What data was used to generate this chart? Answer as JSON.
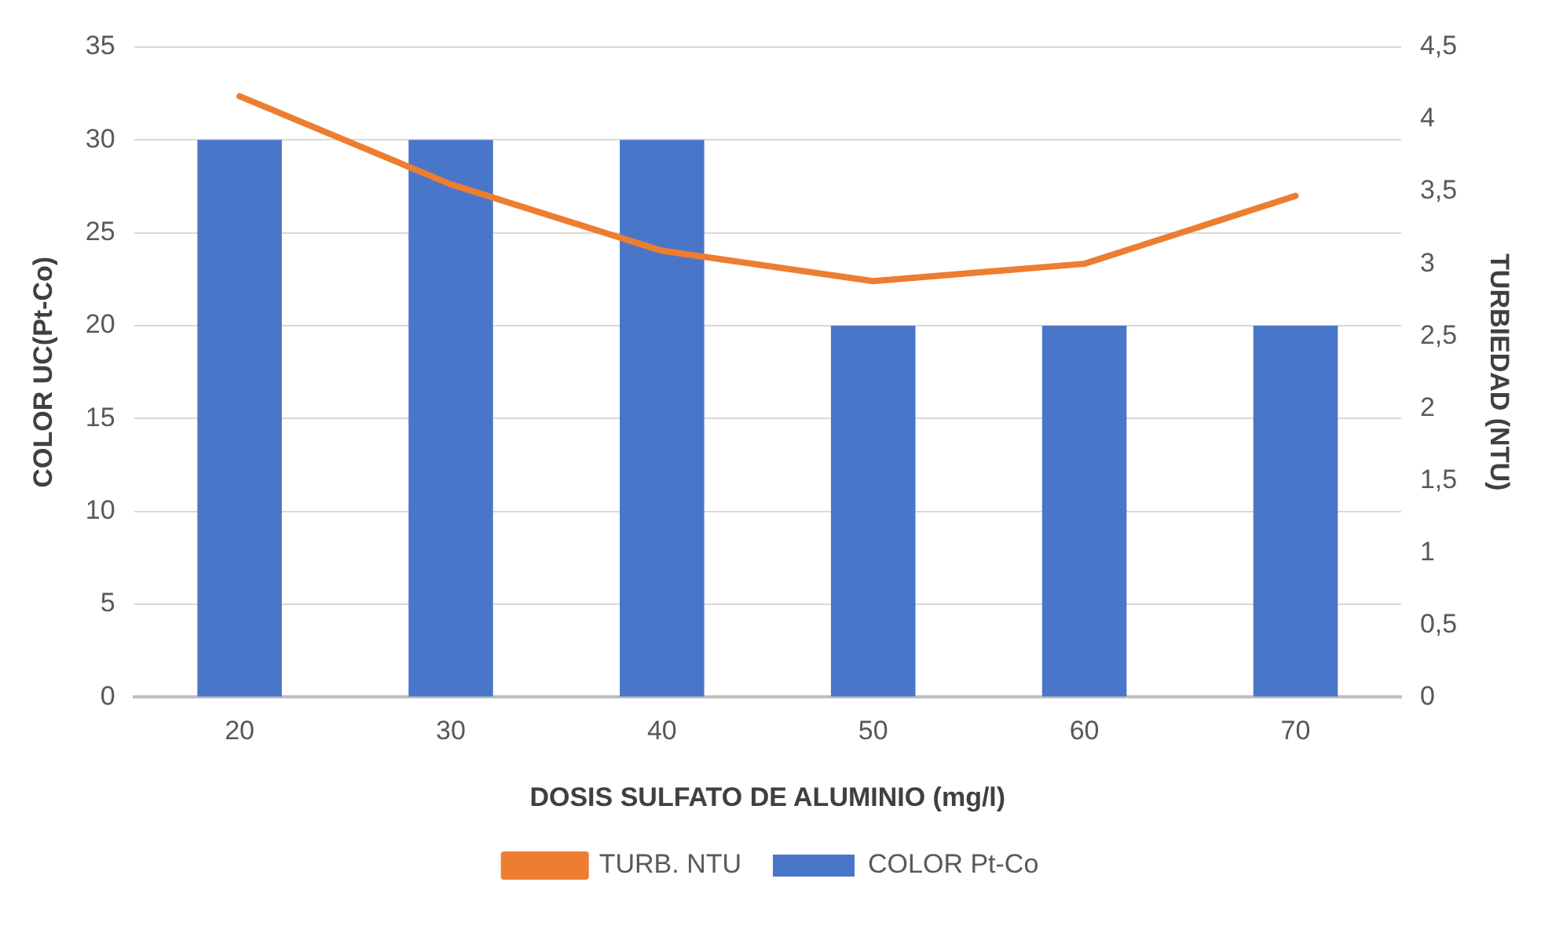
{
  "chart_data": {
    "type": "bar",
    "xlabel": "DOSIS SULFATO DE ALUMINIO (mg/l)",
    "ylabel": "COLOR UC(Pt-Co)",
    "y2label": "TURBIEDAD (NTU)",
    "categories": [
      "20",
      "30",
      "40",
      "50",
      "60",
      "70"
    ],
    "series": [
      {
        "name": "COLOR Pt-Co",
        "color": "#4a76c9",
        "values": [
          30,
          30,
          30,
          20,
          20,
          20
        ]
      },
      {
        "name": "TURB. NTU",
        "type": "line",
        "axis": "y2",
        "color": "#ed7d31",
        "values": [
          4.16,
          3.55,
          3.09,
          2.88,
          3.0,
          3.47
        ]
      }
    ],
    "ylim": [
      0,
      35
    ],
    "yticks": [
      0,
      5,
      10,
      15,
      20,
      25,
      30,
      35
    ],
    "y2lim": [
      0,
      4.5
    ],
    "y2ticks": [
      {
        "value": 0,
        "label": "0"
      },
      {
        "value": 0.5,
        "label": "0,5"
      },
      {
        "value": 1,
        "label": "1"
      },
      {
        "value": 1.5,
        "label": "1,5"
      },
      {
        "value": 2,
        "label": "2"
      },
      {
        "value": 2.5,
        "label": "2,5"
      },
      {
        "value": 3,
        "label": "3"
      },
      {
        "value": 3.5,
        "label": "3,5"
      },
      {
        "value": 4,
        "label": "4"
      },
      {
        "value": 4.5,
        "label": "4,5"
      }
    ],
    "grid": "y",
    "legend": "bottom",
    "marker": "none"
  }
}
